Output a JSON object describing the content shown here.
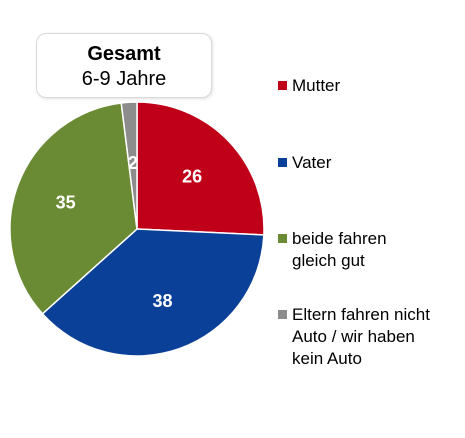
{
  "title_box": {
    "title": "Gesamt",
    "subtitle": "6-9 Jahre"
  },
  "chart_data": {
    "type": "pie",
    "start_angle_deg": 0,
    "direction": "clockwise",
    "slices": [
      {
        "name": "Mutter",
        "value": 26,
        "label": "26",
        "color": "#c00018"
      },
      {
        "name": "Vater",
        "value": 38,
        "label": "38",
        "color": "#0a4097"
      },
      {
        "name": "beide fahren gleich gut",
        "value": 35,
        "label": "35",
        "color": "#6a8a33"
      },
      {
        "name": "Eltern fahren nicht Auto / wir haben kein Auto",
        "value": 2,
        "label": "2",
        "color": "#8c8c8c"
      }
    ],
    "legend": {
      "placement": "right",
      "entries": [
        {
          "lines": [
            "Mutter"
          ],
          "color": "#c00018"
        },
        {
          "lines": [
            "Vater"
          ],
          "color": "#0a4097"
        },
        {
          "lines": [
            "beide fahren",
            "gleich gut"
          ],
          "color": "#6a8a33"
        },
        {
          "lines": [
            "Eltern fahren nicht",
            "Auto / wir haben",
            "kein Auto"
          ],
          "color": "#8c8c8c"
        }
      ]
    }
  }
}
